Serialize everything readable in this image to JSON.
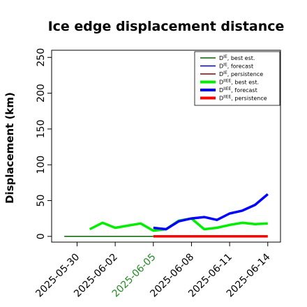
{
  "chart_data": {
    "type": "line",
    "title": "Ice edge displacement distance",
    "ylabel": "Displacement (km)",
    "xlabel": "",
    "ylim": [
      -8,
      260
    ],
    "xlim": [
      "2025-05-28",
      "2025-06-15"
    ],
    "yticks": [
      0,
      50,
      100,
      150,
      200,
      250
    ],
    "xticks": [
      {
        "label": "2025-05-30",
        "color": "#000000"
      },
      {
        "label": "2025-06-02",
        "color": "#000000"
      },
      {
        "label": "2025-06-05",
        "color": "#228B22"
      },
      {
        "label": "2025-06-08",
        "color": "#000000"
      },
      {
        "label": "2025-06-11",
        "color": "#000000"
      },
      {
        "label": "2025-06-14",
        "color": "#000000"
      }
    ],
    "legend_position": "top-right",
    "grid": false,
    "series": [
      {
        "name_base": "D",
        "name_sup": "IE",
        "name_rest": ", best est.",
        "color": "#006400",
        "width": 1.5,
        "x": [
          "2025-05-29",
          "2025-05-30",
          "2025-05-31",
          "2025-06-01",
          "2025-06-02",
          "2025-06-03",
          "2025-06-04",
          "2025-06-05"
        ],
        "y": [
          0,
          0,
          0,
          0,
          0,
          0,
          0,
          0
        ]
      },
      {
        "name_base": "D",
        "name_sup": "IE",
        "name_rest": ", forecast",
        "color": "#0000aa",
        "width": 1.5,
        "x": [],
        "y": []
      },
      {
        "name_base": "D",
        "name_sup": "IE",
        "name_rest": ", persistence",
        "color": "#8b0000",
        "width": 1.5,
        "x": [],
        "y": []
      },
      {
        "name_base": "D",
        "name_sup": "IIEE",
        "name_rest": ", best est.",
        "color": "#00ee00",
        "width": 3.5,
        "x": [
          "2025-05-31",
          "2025-06-01",
          "2025-06-02",
          "2025-06-03",
          "2025-06-04",
          "2025-06-05",
          "2025-06-06",
          "2025-06-07",
          "2025-06-08",
          "2025-06-09",
          "2025-06-10",
          "2025-06-11",
          "2025-06-12",
          "2025-06-13",
          "2025-06-14"
        ],
        "y": [
          10,
          19,
          12,
          15,
          18,
          8,
          10,
          22,
          25,
          10,
          12,
          16,
          19,
          17,
          18
        ]
      },
      {
        "name_base": "D",
        "name_sup": "IIEE",
        "name_rest": ", forecast",
        "color": "#0000ff",
        "width": 3.5,
        "x": [
          "2025-06-05",
          "2025-06-06",
          "2025-06-07",
          "2025-06-08",
          "2025-06-09",
          "2025-06-10",
          "2025-06-11",
          "2025-06-12",
          "2025-06-13",
          "2025-06-14"
        ],
        "y": [
          12,
          10,
          21,
          25,
          27,
          23,
          32,
          36,
          44,
          59
        ]
      },
      {
        "name_base": "D",
        "name_sup": "IIEE",
        "name_rest": ", persistence",
        "color": "#ff0000",
        "width": 3.5,
        "x": [
          "2025-06-05",
          "2025-06-06",
          "2025-06-07",
          "2025-06-08",
          "2025-06-09",
          "2025-06-10",
          "2025-06-11",
          "2025-06-12",
          "2025-06-13",
          "2025-06-14"
        ],
        "y": [
          0,
          0,
          0,
          0,
          0,
          0,
          0,
          0,
          0,
          0
        ]
      }
    ]
  }
}
